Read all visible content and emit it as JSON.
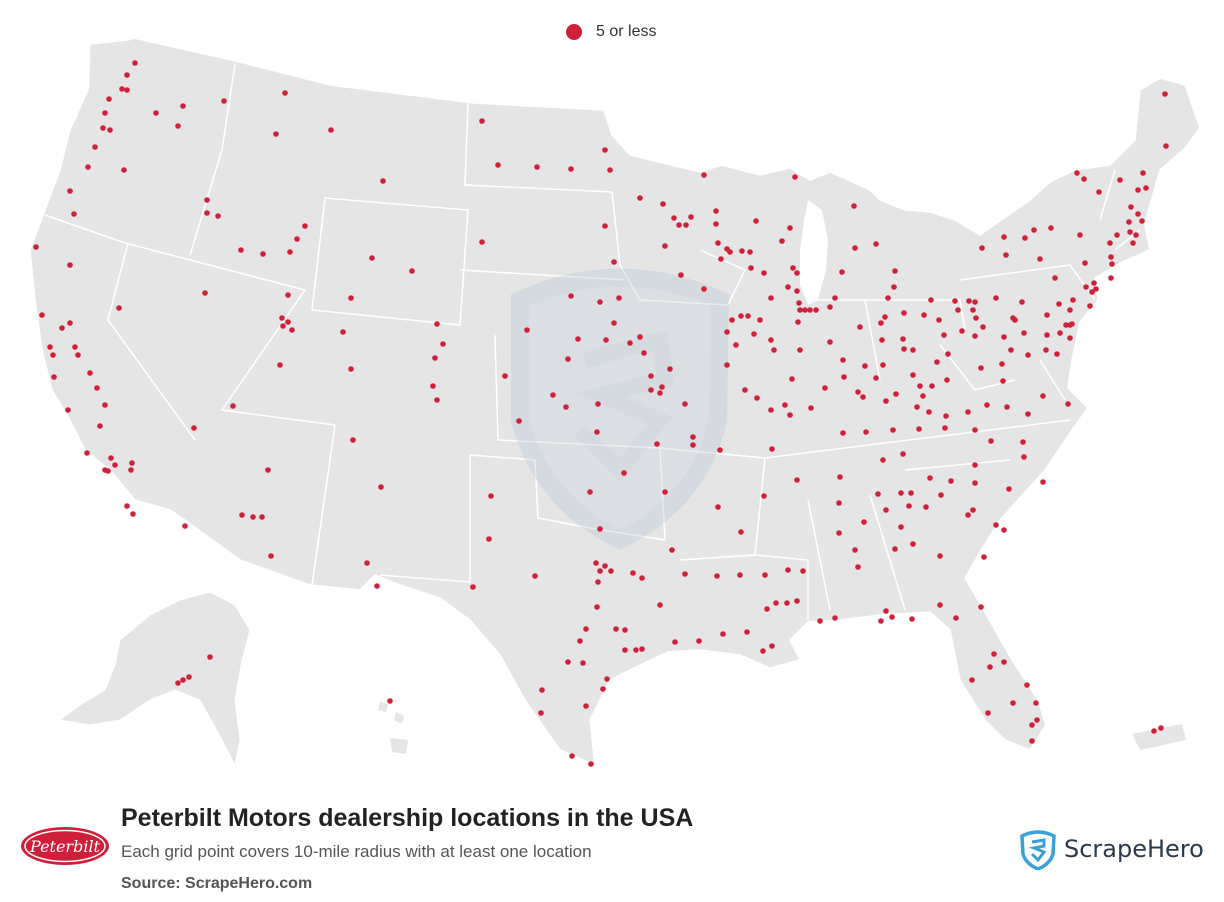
{
  "legend": {
    "label": "5 or less",
    "color": "#d0213a"
  },
  "footer": {
    "logo_text": "Peterbilt",
    "title": "Peterbilt Motors dealership locations in the USA",
    "subtitle": "Each grid point covers 10-mile radius with at least one location",
    "source": "Source: ScrapeHero.com",
    "brand": "ScrapeHero"
  },
  "colors": {
    "land": "#e5e5e5",
    "border": "#ffffff",
    "marker": "#d0213a",
    "watermark": "#c9d6e0",
    "logo_red": "#cf1f3b",
    "brand_blue": "#3aa0d8"
  }
}
